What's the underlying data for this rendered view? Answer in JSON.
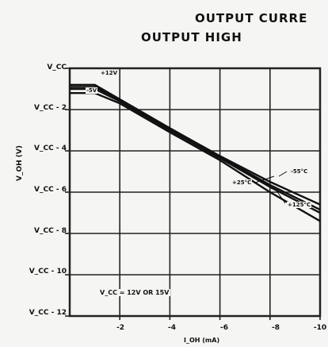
{
  "chart_data": {
    "type": "line",
    "title": "OUTPUT CURRE",
    "subtitle": "OUTPUT HIGH",
    "xlabel": "I_OH (mA)",
    "ylabel": "V_OH (V)",
    "xlim": [
      0,
      -10
    ],
    "ylim": [
      0,
      -12
    ],
    "x_ticks": [
      {
        "value": -2,
        "label": "-2"
      },
      {
        "value": -4,
        "label": "-4"
      },
      {
        "value": -6,
        "label": "-6"
      },
      {
        "value": -8,
        "label": "-8"
      },
      {
        "value": -10,
        "label": "-10"
      }
    ],
    "y_ticks": [
      {
        "value": 0,
        "label": "V_CC"
      },
      {
        "value": -2,
        "label": "V_CC - 2"
      },
      {
        "value": -4,
        "label": "V_CC - 4"
      },
      {
        "value": -6,
        "label": "V_CC - 6"
      },
      {
        "value": -8,
        "label": "V_CC - 8"
      },
      {
        "value": -10,
        "label": "V_CC - 10"
      },
      {
        "value": -12,
        "label": "V_CC - 12"
      }
    ],
    "grid": true,
    "series": [
      {
        "name": "-55°C",
        "x": [
          0,
          -1,
          -2,
          -4,
          -6,
          -8,
          -10
        ],
        "y": [
          -0.8,
          -0.8,
          -1.5,
          -2.9,
          -4.25,
          -5.5,
          -6.6
        ]
      },
      {
        "name": "+25°C",
        "x": [
          0,
          -1,
          -2,
          -4,
          -6,
          -8,
          -10
        ],
        "y": [
          -1.0,
          -1.0,
          -1.6,
          -3.0,
          -4.35,
          -5.75,
          -7.0
        ]
      },
      {
        "name": "+125°C",
        "x": [
          0,
          -1,
          -2,
          -4,
          -6,
          -8,
          -10
        ],
        "y": [
          -1.2,
          -1.2,
          -1.7,
          -3.1,
          -4.45,
          -6.0,
          -7.4
        ]
      },
      {
        "name": "",
        "x": [
          0,
          -1,
          -2,
          -4,
          -6,
          -8,
          -10
        ],
        "y": [
          -0.9,
          -0.9,
          -1.55,
          -2.95,
          -4.3,
          -5.65,
          -6.85
        ]
      }
    ],
    "annotations": {
      "plus12": "+12V",
      "minus5": "-5V",
      "m55": "-55°C",
      "p25": "+25°C",
      "p125": "+125°C",
      "condition": "V_CC = 12V OR 15V"
    }
  },
  "colors": {
    "line": "#111111",
    "grid": "#222222",
    "background": "#f5f5f3"
  }
}
